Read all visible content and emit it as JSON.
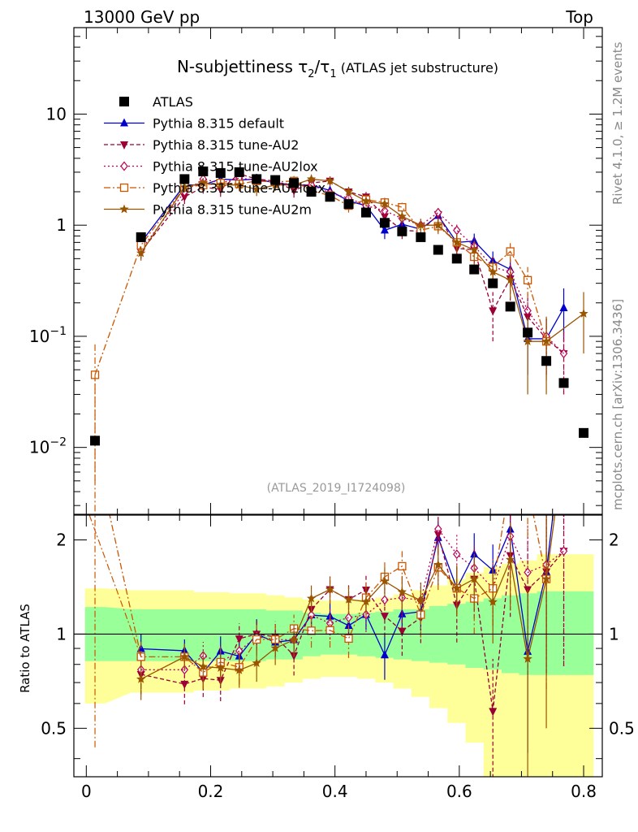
{
  "header": {
    "left": "13000 GeV pp",
    "right": "Top"
  },
  "side_labels": {
    "rivet": "Rivet 4.1.0, ≥ 1.2M events",
    "mcplots": "mcplots.cern.ch [arXiv:1306.3436]"
  },
  "chart_data": {
    "type": "line",
    "title": "N-subjettiness τ2/τ1",
    "title_main": "N-subjettiness ",
    "title_tau2": "τ",
    "title_sub2": "2",
    "title_slash": "/",
    "title_tau1": "τ",
    "title_sub1": "1",
    "title_suffix": " (ATLAS jet substructure)",
    "analysis_id": "(ATLAS_2019_I1724098)",
    "xlim": [
      -0.02,
      0.83
    ],
    "ylim_main": [
      0.0025,
      60
    ],
    "ylim_ratio": [
      0.35,
      2.4
    ],
    "yscale_main": "log",
    "yscale_ratio": "log",
    "ratio_ylabel": "Ratio to ATLAS",
    "xticks": [
      {
        "v": 0,
        "label": "0"
      },
      {
        "v": 0.2,
        "label": "0.2"
      },
      {
        "v": 0.4,
        "label": "0.4"
      },
      {
        "v": 0.6,
        "label": "0.6"
      },
      {
        "v": 0.8,
        "label": "0.8"
      }
    ],
    "yticks_main": [
      {
        "v": 0.01,
        "base": "10",
        "exp": "−2"
      },
      {
        "v": 0.1,
        "base": "10",
        "exp": "−1"
      },
      {
        "v": 1,
        "base": "1",
        "exp": ""
      },
      {
        "v": 10,
        "base": "10",
        "exp": ""
      }
    ],
    "yticks_ratio": [
      {
        "v": 0.5,
        "label": "0.5"
      },
      {
        "v": 1,
        "label": "1"
      },
      {
        "v": 2,
        "label": "2"
      }
    ],
    "x": [
      0.014,
      0.088,
      0.158,
      0.188,
      0.216,
      0.246,
      0.274,
      0.304,
      0.334,
      0.362,
      0.392,
      0.422,
      0.45,
      0.48,
      0.508,
      0.538,
      0.566,
      0.596,
      0.624,
      0.654,
      0.682,
      0.71,
      0.74,
      0.768,
      0.8
    ],
    "data": {
      "name": "ATLAS",
      "values": [
        0.0115,
        0.78,
        2.6,
        3.05,
        2.95,
        3.0,
        2.6,
        2.55,
        2.4,
        2.0,
        1.8,
        1.55,
        1.3,
        1.05,
        0.88,
        0.78,
        0.6,
        0.5,
        0.4,
        0.3,
        0.185,
        0.108,
        0.06,
        0.038,
        0.0135
      ],
      "band_inner": [
        [
          0.82,
          1.22
        ],
        [
          0.82,
          1.2
        ],
        [
          0.82,
          1.2
        ],
        [
          0.82,
          1.2
        ],
        [
          0.82,
          1.2
        ],
        [
          0.82,
          1.2
        ],
        [
          0.82,
          1.2
        ],
        [
          0.83,
          1.19
        ],
        [
          0.83,
          1.19
        ],
        [
          0.85,
          1.17
        ],
        [
          0.86,
          1.16
        ],
        [
          0.86,
          1.16
        ],
        [
          0.85,
          1.17
        ],
        [
          0.84,
          1.18
        ],
        [
          0.83,
          1.2
        ],
        [
          0.82,
          1.2
        ],
        [
          0.81,
          1.23
        ],
        [
          0.8,
          1.25
        ],
        [
          0.78,
          1.27
        ],
        [
          0.77,
          1.3
        ],
        [
          0.75,
          1.33
        ],
        [
          0.74,
          1.35
        ],
        [
          0.74,
          1.37
        ],
        [
          0.74,
          1.37
        ],
        [
          0.74,
          1.37
        ]
      ],
      "band_outer": [
        [
          0.6,
          1.4
        ],
        [
          0.65,
          1.38
        ],
        [
          0.65,
          1.38
        ],
        [
          0.66,
          1.36
        ],
        [
          0.66,
          1.36
        ],
        [
          0.67,
          1.35
        ],
        [
          0.67,
          1.35
        ],
        [
          0.68,
          1.33
        ],
        [
          0.7,
          1.31
        ],
        [
          0.72,
          1.29
        ],
        [
          0.73,
          1.28
        ],
        [
          0.73,
          1.28
        ],
        [
          0.72,
          1.29
        ],
        [
          0.7,
          1.31
        ],
        [
          0.67,
          1.34
        ],
        [
          0.63,
          1.38
        ],
        [
          0.58,
          1.43
        ],
        [
          0.52,
          1.5
        ],
        [
          0.45,
          1.57
        ],
        [
          0.35,
          1.64
        ],
        [
          0.3,
          1.68
        ],
        [
          0.3,
          1.72
        ],
        [
          0.3,
          1.8
        ],
        [
          0.3,
          1.8
        ],
        [
          0.3,
          1.8
        ]
      ]
    },
    "series": [
      {
        "name": "Pythia 8.315 default",
        "color": "#0000cc",
        "dash": "",
        "marker": "triangle",
        "values": [
          null,
          0.7,
          2.3,
          2.3,
          2.6,
          2.55,
          2.6,
          2.4,
          2.3,
          2.3,
          2.05,
          1.65,
          1.5,
          0.9,
          1.02,
          0.92,
          1.22,
          0.7,
          0.72,
          0.48,
          0.4,
          0.095,
          0.095,
          0.18,
          null
        ],
        "err": [
          0,
          0.08,
          0.2,
          0.25,
          0.3,
          0.3,
          0.3,
          0.25,
          0.25,
          0.25,
          0.2,
          0.18,
          0.16,
          0.15,
          0.12,
          0.12,
          0.15,
          0.12,
          0.12,
          0.1,
          0.1,
          0.05,
          0.05,
          0.09,
          0
        ]
      },
      {
        "name": "Pythia 8.315 tune-AU2",
        "color": "#990033",
        "dash": "5,3",
        "marker": "tri-down",
        "values": [
          null,
          0.58,
          1.8,
          2.2,
          2.1,
          2.9,
          2.6,
          2.5,
          2.05,
          2.4,
          2.5,
          2.0,
          1.8,
          1.2,
          0.9,
          0.88,
          1.25,
          0.62,
          0.6,
          0.17,
          0.33,
          0.15,
          0.095,
          0.07,
          null
        ],
        "err": [
          0,
          0.08,
          0.25,
          0.28,
          0.3,
          0.35,
          0.3,
          0.3,
          0.28,
          0.28,
          0.25,
          0.22,
          0.2,
          0.17,
          0.15,
          0.15,
          0.17,
          0.15,
          0.15,
          0.08,
          0.12,
          0.07,
          0.05,
          0.04,
          0
        ]
      },
      {
        "name": "Pythia 8.315 tune-AU2lox",
        "color": "#bb0055",
        "dash": "2,3",
        "marker": "diamond",
        "values": [
          null,
          0.6,
          2.0,
          2.6,
          2.4,
          2.65,
          2.55,
          2.45,
          2.3,
          2.3,
          1.95,
          1.75,
          1.5,
          1.35,
          1.15,
          1.0,
          1.3,
          0.9,
          0.65,
          0.42,
          0.38,
          0.17,
          0.1,
          0.07,
          null
        ],
        "err": [
          0,
          0.08,
          0.22,
          0.28,
          0.3,
          0.3,
          0.3,
          0.28,
          0.26,
          0.26,
          0.22,
          0.2,
          0.18,
          0.17,
          0.15,
          0.14,
          0.16,
          0.14,
          0.12,
          0.1,
          0.1,
          0.07,
          0.05,
          0.04,
          null
        ]
      },
      {
        "name": "Pythia 8.315 tune-AU2loxx",
        "color": "#cc5500",
        "dash": "8,3,2,3",
        "marker": "square-open",
        "values": [
          0.045,
          0.66,
          2.2,
          2.3,
          2.4,
          2.35,
          2.5,
          2.45,
          2.5,
          2.05,
          1.85,
          1.5,
          1.7,
          1.6,
          1.45,
          0.9,
          0.98,
          0.7,
          0.52,
          0.42,
          0.58,
          0.32,
          0.09,
          null,
          null
        ],
        "err": [
          0.04,
          0.08,
          0.22,
          0.26,
          0.28,
          0.28,
          0.28,
          0.28,
          0.27,
          0.24,
          0.22,
          0.2,
          0.2,
          0.18,
          0.17,
          0.14,
          0.15,
          0.13,
          0.12,
          0.1,
          0.12,
          0.1,
          0.05,
          0,
          0
        ]
      },
      {
        "name": "Pythia 8.315 tune-AU2m",
        "color": "#995500",
        "dash": "",
        "marker": "star",
        "values": [
          null,
          0.56,
          2.2,
          2.4,
          2.3,
          2.3,
          2.1,
          2.3,
          2.3,
          2.6,
          2.5,
          2.0,
          1.65,
          1.55,
          1.2,
          1.0,
          1.0,
          0.7,
          0.6,
          0.38,
          0.32,
          0.09,
          0.09,
          null,
          0.16
        ],
        "err": [
          0,
          0.08,
          0.22,
          0.26,
          0.28,
          0.28,
          0.27,
          0.27,
          0.27,
          0.26,
          0.24,
          0.2,
          0.18,
          0.17,
          0.15,
          0.14,
          0.14,
          0.13,
          0.12,
          0.1,
          0.1,
          0.06,
          0.06,
          0,
          0.09
        ]
      }
    ]
  }
}
